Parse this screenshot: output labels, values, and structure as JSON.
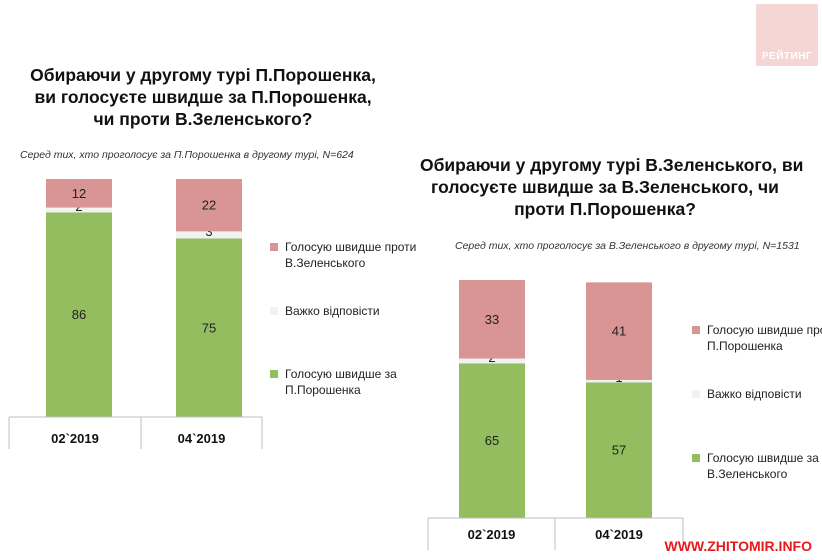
{
  "logo": {
    "label": "РЕЙТИНГ"
  },
  "watermark": "WWW.ZHITOMIR.INFO",
  "colors": {
    "against": "#d99594",
    "hard": "#f2f2f2",
    "for": "#93bd5e",
    "axis": "#bfbfbf"
  },
  "left": {
    "title_lines": [
      "Обираючи у другому турі П.Порошенка,",
      "ви голосуєте швидше за П.Порошенка,",
      "чи проти В.Зеленського?"
    ],
    "subtitle": "Серед тих, хто проголосує за П.Порошенка в другому турі, N=624",
    "legend": [
      "Голосую швидше проти В.Зеленського",
      "Важко відповісти",
      "Голосую швидше за П.Порошенка"
    ]
  },
  "right": {
    "title_lines": [
      "Обираючи у другому турі В.Зеленського, ви",
      "голосуєте швидше за В.Зеленського, чи",
      "проти П.Порошенка?"
    ],
    "subtitle": "Серед тих, хто проголосує за В.Зеленського в другому турі, N=1531",
    "legend": [
      "Голосую швидше проти П.Порошенка",
      "Важко відповісти",
      "Голосую швидше за В.Зеленського"
    ]
  },
  "chart_data": [
    {
      "type": "bar",
      "stacked": true,
      "title": "Обираючи у другому турі П.Порошенка, ви голосуєте швидше за П.Порошенка, чи проти В.Зеленського?",
      "categories": [
        "02`2019",
        "04`2019"
      ],
      "series": [
        {
          "name": "Голосую швидше за П.Порошенка",
          "values": [
            86,
            75
          ]
        },
        {
          "name": "Важко відповісти",
          "values": [
            2,
            3
          ]
        },
        {
          "name": "Голосую швидше проти В.Зеленського",
          "values": [
            12,
            22
          ]
        }
      ],
      "ylim": [
        0,
        100
      ]
    },
    {
      "type": "bar",
      "stacked": true,
      "title": "Обираючи у другому турі В.Зеленського, ви голосуєте швидше за В.Зеленського, чи проти П.Порошенка?",
      "categories": [
        "02`2019",
        "04`2019"
      ],
      "series": [
        {
          "name": "Голосую швидше за В.Зеленського",
          "values": [
            65,
            57
          ]
        },
        {
          "name": "Важко відповісти",
          "values": [
            2,
            1
          ]
        },
        {
          "name": "Голосую швидше проти П.Порошенка",
          "values": [
            33,
            41
          ]
        }
      ],
      "ylim": [
        0,
        100
      ]
    }
  ]
}
